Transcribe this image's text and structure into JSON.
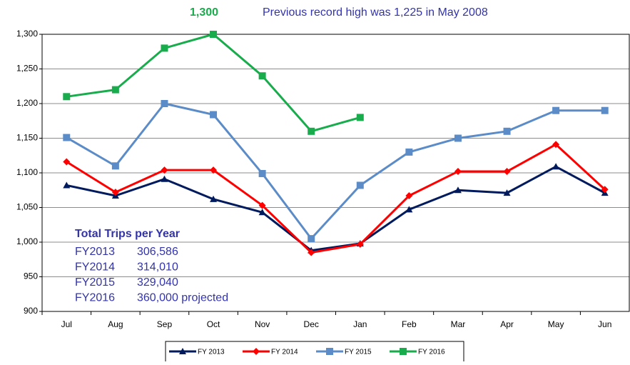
{
  "chart_data": {
    "type": "line",
    "annotations": {
      "peak": "1,300",
      "record": "Previous record high was 1,225 in May 2008"
    },
    "categories": [
      "Jul",
      "Aug",
      "Sep",
      "Oct",
      "Nov",
      "Dec",
      "Jan",
      "Feb",
      "Mar",
      "Apr",
      "May",
      "Jun"
    ],
    "series": [
      {
        "name": "FY 2013",
        "color": "#001a5e",
        "marker": "triangle",
        "values": [
          1082,
          1067,
          1091,
          1062,
          1043,
          988,
          998,
          1047,
          1075,
          1071,
          1109,
          1071
        ]
      },
      {
        "name": "FY 2014",
        "color": "#ff0000",
        "marker": "diamond",
        "values": [
          1116,
          1072,
          1104,
          1104,
          1053,
          985,
          997,
          1067,
          1102,
          1102,
          1141,
          1076
        ]
      },
      {
        "name": "FY 2015",
        "color": "#5b8cc8",
        "marker": "square",
        "values": [
          1151,
          1110,
          1200,
          1184,
          1099,
          1005,
          1082,
          1130,
          1150,
          1160,
          1190,
          1190
        ]
      },
      {
        "name": "FY 2016",
        "color": "#19ac4c",
        "marker": "square",
        "values": [
          1210,
          1220,
          1280,
          1300,
          1240,
          1160,
          1180,
          null,
          null,
          null,
          null,
          null
        ]
      }
    ],
    "ylim": [
      900,
      1300
    ],
    "yticks": [
      900,
      950,
      {
        "value": 1000,
        "label": "1,000"
      },
      {
        "value": 1050,
        "label": "1,050"
      },
      {
        "value": 1100,
        "label": "1,100"
      },
      {
        "value": 1150,
        "label": "1,150"
      },
      {
        "value": 1200,
        "label": "1,200"
      },
      {
        "value": 1250,
        "label": "1,250"
      },
      {
        "value": 1300,
        "label": "1,300"
      }
    ],
    "grid": true,
    "trips_box": {
      "title": "Total Trips per Year",
      "rows": [
        [
          "FY2013",
          "306,586"
        ],
        [
          "FY2014",
          "314,010"
        ],
        [
          "FY2015",
          "329,040"
        ],
        [
          "FY2016",
          "360,000 projected"
        ]
      ]
    }
  }
}
